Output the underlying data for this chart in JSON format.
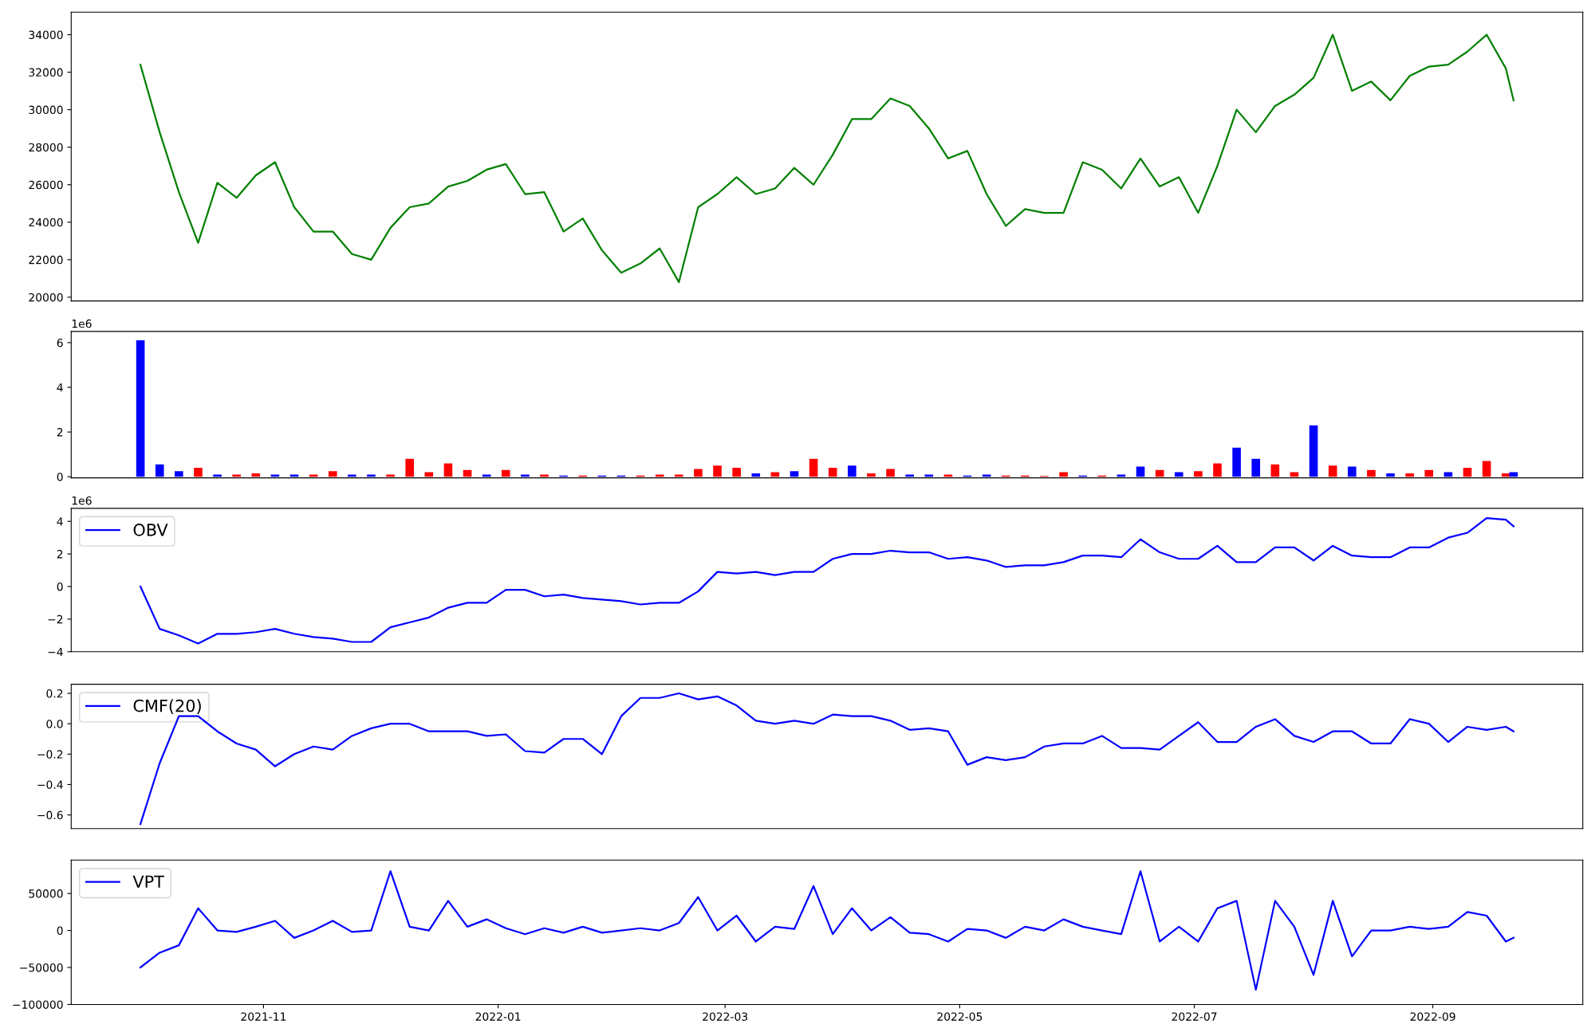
{
  "chart_data": [
    {
      "type": "line",
      "x": [
        "2021-09-30",
        "2021-10-05",
        "2021-10-10",
        "2021-10-15",
        "2021-10-20",
        "2021-10-25",
        "2021-10-30",
        "2021-11-04",
        "2021-11-09",
        "2021-11-14",
        "2021-11-19",
        "2021-11-24",
        "2021-11-29",
        "2021-12-04",
        "2021-12-09",
        "2021-12-14",
        "2021-12-19",
        "2021-12-24",
        "2021-12-29",
        "2022-01-03",
        "2022-01-08",
        "2022-01-13",
        "2022-01-18",
        "2022-01-23",
        "2022-01-28",
        "2022-02-02",
        "2022-02-07",
        "2022-02-12",
        "2022-02-17",
        "2022-02-22",
        "2022-02-27",
        "2022-03-04",
        "2022-03-09",
        "2022-03-14",
        "2022-03-19",
        "2022-03-24",
        "2022-03-29",
        "2022-04-03",
        "2022-04-08",
        "2022-04-13",
        "2022-04-18",
        "2022-04-23",
        "2022-04-28",
        "2022-05-03",
        "2022-05-08",
        "2022-05-13",
        "2022-05-18",
        "2022-05-23",
        "2022-05-28",
        "2022-06-02",
        "2022-06-07",
        "2022-06-12",
        "2022-06-17",
        "2022-06-22",
        "2022-06-27",
        "2022-07-02",
        "2022-07-07",
        "2022-07-12",
        "2022-07-17",
        "2022-07-22",
        "2022-07-27",
        "2022-08-01",
        "2022-08-06",
        "2022-08-11",
        "2022-08-16",
        "2022-08-21",
        "2022-08-26",
        "2022-08-31",
        "2022-09-05",
        "2022-09-10",
        "2022-09-15",
        "2022-09-20",
        "2022-09-22"
      ],
      "series": [
        {
          "color": "#008000",
          "values": [
            32400,
            28800,
            25600,
            22900,
            26100,
            25300,
            26500,
            27200,
            24800,
            23500,
            23500,
            22300,
            22000,
            23700,
            24800,
            25000,
            25900,
            26200,
            26800,
            27100,
            25500,
            25600,
            23500,
            24200,
            22500,
            21300,
            21800,
            22600,
            20800,
            24800,
            25500,
            26400,
            25500,
            25800,
            26900,
            26000,
            27600,
            29500,
            29500,
            30600,
            30200,
            29000,
            27400,
            27800,
            25500,
            23800,
            24700,
            24500,
            24500,
            27200,
            26800,
            25800,
            27400,
            25900,
            26400,
            24500,
            27000,
            30000,
            28800,
            30200,
            30800,
            31700,
            34000,
            31000,
            31500,
            30500,
            31800,
            32300,
            32400,
            33100,
            34000,
            32200,
            30500
          ]
        }
      ],
      "xlim": [
        "2021-09-12",
        "2022-10-10"
      ],
      "ylim": [
        19800,
        35200
      ],
      "yticks": [
        20000,
        22000,
        24000,
        26000,
        28000,
        30000,
        32000,
        34000
      ],
      "tick_labels": "y",
      "legend": false,
      "grid": false
    },
    {
      "type": "bar",
      "x": [
        "2021-09-30",
        "2021-10-05",
        "2021-10-10",
        "2021-10-15",
        "2021-10-20",
        "2021-10-25",
        "2021-10-30",
        "2021-11-04",
        "2021-11-09",
        "2021-11-14",
        "2021-11-19",
        "2021-11-24",
        "2021-11-29",
        "2021-12-04",
        "2021-12-09",
        "2021-12-14",
        "2021-12-19",
        "2021-12-24",
        "2021-12-29",
        "2022-01-03",
        "2022-01-08",
        "2022-01-13",
        "2022-01-18",
        "2022-01-23",
        "2022-01-28",
        "2022-02-02",
        "2022-02-07",
        "2022-02-12",
        "2022-02-17",
        "2022-02-22",
        "2022-02-27",
        "2022-03-04",
        "2022-03-09",
        "2022-03-14",
        "2022-03-19",
        "2022-03-24",
        "2022-03-29",
        "2022-04-03",
        "2022-04-08",
        "2022-04-13",
        "2022-04-18",
        "2022-04-23",
        "2022-04-28",
        "2022-05-03",
        "2022-05-08",
        "2022-05-13",
        "2022-05-18",
        "2022-05-23",
        "2022-05-28",
        "2022-06-02",
        "2022-06-07",
        "2022-06-12",
        "2022-06-17",
        "2022-06-22",
        "2022-06-27",
        "2022-07-02",
        "2022-07-07",
        "2022-07-12",
        "2022-07-17",
        "2022-07-22",
        "2022-07-27",
        "2022-08-01",
        "2022-08-06",
        "2022-08-11",
        "2022-08-16",
        "2022-08-21",
        "2022-08-26",
        "2022-08-31",
        "2022-09-05",
        "2022-09-10",
        "2022-09-15",
        "2022-09-20",
        "2022-09-22"
      ],
      "values": [
        6.1,
        0.55,
        0.25,
        0.4,
        0.1,
        0.1,
        0.15,
        0.1,
        0.1,
        0.1,
        0.25,
        0.1,
        0.1,
        0.1,
        0.8,
        0.2,
        0.6,
        0.3,
        0.1,
        0.3,
        0.1,
        0.1,
        0.05,
        0.05,
        0.05,
        0.05,
        0.05,
        0.1,
        0.1,
        0.35,
        0.5,
        0.4,
        0.15,
        0.2,
        0.25,
        0.8,
        0.4,
        0.5,
        0.15,
        0.35,
        0.1,
        0.1,
        0.1,
        0.05,
        0.1,
        0.05,
        0.05,
        0.03,
        0.2,
        0.05,
        0.05,
        0.1,
        0.45,
        0.3,
        0.2,
        0.25,
        0.6,
        1.3,
        0.8,
        0.55,
        0.2,
        2.3,
        0.5,
        0.45,
        0.3,
        0.15,
        0.15,
        0.3,
        0.2,
        0.4,
        0.7,
        0.15,
        0.2
      ],
      "colors": [
        "#0000ff",
        "#0000ff",
        "#0000ff",
        "#ff0000",
        "#0000ff",
        "#ff0000",
        "#ff0000",
        "#0000ff",
        "#0000ff",
        "#ff0000",
        "#ff0000",
        "#0000ff",
        "#0000ff",
        "#ff0000",
        "#ff0000",
        "#ff0000",
        "#ff0000",
        "#ff0000",
        "#0000ff",
        "#ff0000",
        "#0000ff",
        "#ff0000",
        "#0000ff",
        "#ff0000",
        "#0000ff",
        "#0000ff",
        "#ff0000",
        "#ff0000",
        "#ff0000",
        "#ff0000",
        "#ff0000",
        "#ff0000",
        "#0000ff",
        "#ff0000",
        "#0000ff",
        "#ff0000",
        "#ff0000",
        "#0000ff",
        "#ff0000",
        "#ff0000",
        "#0000ff",
        "#0000ff",
        "#ff0000",
        "#0000ff",
        "#0000ff",
        "#ff0000",
        "#ff0000",
        "#ff0000",
        "#ff0000",
        "#0000ff",
        "#ff0000",
        "#0000ff",
        "#0000ff",
        "#ff0000",
        "#0000ff",
        "#ff0000",
        "#ff0000",
        "#0000ff",
        "#0000ff",
        "#ff0000",
        "#ff0000",
        "#0000ff",
        "#ff0000",
        "#0000ff",
        "#ff0000",
        "#0000ff",
        "#ff0000",
        "#ff0000",
        "#0000ff",
        "#ff0000",
        "#ff0000",
        "#ff0000",
        "#0000ff"
      ],
      "xlim": [
        "2021-09-12",
        "2022-10-10"
      ],
      "ylim": [
        -0.05,
        6.5
      ],
      "yticks": [
        0,
        2,
        4,
        6
      ],
      "annotations": [
        "1e6"
      ],
      "tick_labels": "y",
      "legend": false,
      "grid": false
    },
    {
      "type": "line",
      "x": [
        "2021-09-30",
        "2021-10-05",
        "2021-10-10",
        "2021-10-15",
        "2021-10-20",
        "2021-10-25",
        "2021-10-30",
        "2021-11-04",
        "2021-11-09",
        "2021-11-14",
        "2021-11-19",
        "2021-11-24",
        "2021-11-29",
        "2021-12-04",
        "2021-12-09",
        "2021-12-14",
        "2021-12-19",
        "2021-12-24",
        "2021-12-29",
        "2022-01-03",
        "2022-01-08",
        "2022-01-13",
        "2022-01-18",
        "2022-01-23",
        "2022-01-28",
        "2022-02-02",
        "2022-02-07",
        "2022-02-12",
        "2022-02-17",
        "2022-02-22",
        "2022-02-27",
        "2022-03-04",
        "2022-03-09",
        "2022-03-14",
        "2022-03-19",
        "2022-03-24",
        "2022-03-29",
        "2022-04-03",
        "2022-04-08",
        "2022-04-13",
        "2022-04-18",
        "2022-04-23",
        "2022-04-28",
        "2022-05-03",
        "2022-05-08",
        "2022-05-13",
        "2022-05-18",
        "2022-05-23",
        "2022-05-28",
        "2022-06-02",
        "2022-06-07",
        "2022-06-12",
        "2022-06-17",
        "2022-06-22",
        "2022-06-27",
        "2022-07-02",
        "2022-07-07",
        "2022-07-12",
        "2022-07-17",
        "2022-07-22",
        "2022-07-27",
        "2022-08-01",
        "2022-08-06",
        "2022-08-11",
        "2022-08-16",
        "2022-08-21",
        "2022-08-26",
        "2022-08-31",
        "2022-09-05",
        "2022-09-10",
        "2022-09-15",
        "2022-09-20",
        "2022-09-22"
      ],
      "series": [
        {
          "name": "OBV",
          "color": "#0000ff",
          "values": [
            0,
            -2.6,
            -3.0,
            -3.5,
            -2.9,
            -2.9,
            -2.8,
            -2.6,
            -2.9,
            -3.1,
            -3.2,
            -3.4,
            -3.4,
            -2.5,
            -2.2,
            -1.9,
            -1.3,
            -1.0,
            -1.0,
            -0.2,
            -0.2,
            -0.6,
            -0.5,
            -0.7,
            -0.8,
            -0.9,
            -1.1,
            -1.0,
            -1.0,
            -0.3,
            0.9,
            0.8,
            0.9,
            0.7,
            0.9,
            0.9,
            1.7,
            2.0,
            2.0,
            2.2,
            2.1,
            2.1,
            1.7,
            1.8,
            1.6,
            1.2,
            1.3,
            1.3,
            1.5,
            1.9,
            1.9,
            1.8,
            2.9,
            2.1,
            1.7,
            1.7,
            2.5,
            1.5,
            1.5,
            2.4,
            2.4,
            1.6,
            2.5,
            1.9,
            1.8,
            1.8,
            2.4,
            2.4,
            3.0,
            3.3,
            4.2,
            4.1,
            3.7
          ]
        }
      ],
      "xlim": [
        "2021-09-12",
        "2022-10-10"
      ],
      "ylim": [
        -4.0,
        4.8
      ],
      "yticks": [
        {
          "value": -4,
          "label": "−4"
        },
        {
          "value": -2,
          "label": "−2"
        },
        0,
        2,
        4
      ],
      "annotations": [
        "1e6"
      ],
      "tick_labels": "y",
      "legend": "top left",
      "grid": false
    },
    {
      "type": "line",
      "x": [
        "2021-09-30",
        "2021-10-05",
        "2021-10-10",
        "2021-10-15",
        "2021-10-20",
        "2021-10-25",
        "2021-10-30",
        "2021-11-04",
        "2021-11-09",
        "2021-11-14",
        "2021-11-19",
        "2021-11-24",
        "2021-11-29",
        "2021-12-04",
        "2021-12-09",
        "2021-12-14",
        "2021-12-19",
        "2021-12-24",
        "2021-12-29",
        "2022-01-03",
        "2022-01-08",
        "2022-01-13",
        "2022-01-18",
        "2022-01-23",
        "2022-01-28",
        "2022-02-02",
        "2022-02-07",
        "2022-02-12",
        "2022-02-17",
        "2022-02-22",
        "2022-02-27",
        "2022-03-04",
        "2022-03-09",
        "2022-03-14",
        "2022-03-19",
        "2022-03-24",
        "2022-03-29",
        "2022-04-03",
        "2022-04-08",
        "2022-04-13",
        "2022-04-18",
        "2022-04-23",
        "2022-04-28",
        "2022-05-03",
        "2022-05-08",
        "2022-05-13",
        "2022-05-18",
        "2022-05-23",
        "2022-05-28",
        "2022-06-02",
        "2022-06-07",
        "2022-06-12",
        "2022-06-17",
        "2022-06-22",
        "2022-06-27",
        "2022-07-02",
        "2022-07-07",
        "2022-07-12",
        "2022-07-17",
        "2022-07-22",
        "2022-07-27",
        "2022-08-01",
        "2022-08-06",
        "2022-08-11",
        "2022-08-16",
        "2022-08-21",
        "2022-08-26",
        "2022-08-31",
        "2022-09-05",
        "2022-09-10",
        "2022-09-15",
        "2022-09-20",
        "2022-09-22"
      ],
      "series": [
        {
          "name": "CMF(20)",
          "color": "#0000ff",
          "values": [
            -0.66,
            -0.26,
            0.05,
            0.05,
            -0.05,
            -0.13,
            -0.17,
            -0.28,
            -0.2,
            -0.15,
            -0.17,
            -0.08,
            -0.03,
            0.0,
            0.0,
            -0.05,
            -0.05,
            -0.05,
            -0.08,
            -0.07,
            -0.18,
            -0.19,
            -0.1,
            -0.1,
            -0.2,
            0.05,
            0.17,
            0.17,
            0.2,
            0.16,
            0.18,
            0.12,
            0.02,
            0.0,
            0.02,
            0.0,
            0.06,
            0.05,
            0.05,
            0.02,
            -0.04,
            -0.03,
            -0.05,
            -0.27,
            -0.22,
            -0.24,
            -0.22,
            -0.15,
            -0.13,
            -0.13,
            -0.08,
            -0.16,
            -0.16,
            -0.17,
            -0.08,
            0.01,
            -0.12,
            -0.12,
            -0.02,
            0.03,
            -0.08,
            -0.12,
            -0.05,
            -0.05,
            -0.13,
            -0.13,
            0.03,
            0.0,
            -0.12,
            -0.02,
            -0.04,
            -0.02,
            -0.05
          ]
        }
      ],
      "xlim": [
        "2021-09-12",
        "2022-10-10"
      ],
      "ylim": [
        -0.69,
        0.26
      ],
      "yticks": [
        {
          "value": -0.6,
          "label": "−0.6"
        },
        {
          "value": -0.4,
          "label": "−0.4"
        },
        {
          "value": -0.2,
          "label": "−0.2"
        },
        {
          "value": 0.0,
          "label": "0.0"
        },
        {
          "value": 0.2,
          "label": "0.2"
        }
      ],
      "tick_labels": "y",
      "legend": "top left",
      "grid": false
    },
    {
      "type": "line",
      "x": [
        "2021-09-30",
        "2021-10-05",
        "2021-10-10",
        "2021-10-15",
        "2021-10-20",
        "2021-10-25",
        "2021-10-30",
        "2021-11-04",
        "2021-11-09",
        "2021-11-14",
        "2021-11-19",
        "2021-11-24",
        "2021-11-29",
        "2021-12-04",
        "2021-12-09",
        "2021-12-14",
        "2021-12-19",
        "2021-12-24",
        "2021-12-29",
        "2022-01-03",
        "2022-01-08",
        "2022-01-13",
        "2022-01-18",
        "2022-01-23",
        "2022-01-28",
        "2022-02-02",
        "2022-02-07",
        "2022-02-12",
        "2022-02-17",
        "2022-02-22",
        "2022-02-27",
        "2022-03-04",
        "2022-03-09",
        "2022-03-14",
        "2022-03-19",
        "2022-03-24",
        "2022-03-29",
        "2022-04-03",
        "2022-04-08",
        "2022-04-13",
        "2022-04-18",
        "2022-04-23",
        "2022-04-28",
        "2022-05-03",
        "2022-05-08",
        "2022-05-13",
        "2022-05-18",
        "2022-05-23",
        "2022-05-28",
        "2022-06-02",
        "2022-06-07",
        "2022-06-12",
        "2022-06-17",
        "2022-06-22",
        "2022-06-27",
        "2022-07-02",
        "2022-07-07",
        "2022-07-12",
        "2022-07-17",
        "2022-07-22",
        "2022-07-27",
        "2022-08-01",
        "2022-08-06",
        "2022-08-11",
        "2022-08-16",
        "2022-08-21",
        "2022-08-26",
        "2022-08-31",
        "2022-09-05",
        "2022-09-10",
        "2022-09-15",
        "2022-09-20",
        "2022-09-22"
      ],
      "series": [
        {
          "name": "VPT",
          "color": "#0000ff",
          "values": [
            -50000,
            -30000,
            -20000,
            30000,
            0,
            -2000,
            5000,
            13000,
            -10000,
            0,
            13000,
            -2000,
            0,
            80000,
            5000,
            0,
            40000,
            5000,
            15000,
            3000,
            -5000,
            3000,
            -3000,
            5000,
            -3000,
            0,
            3000,
            0,
            10000,
            45000,
            0,
            20000,
            -15000,
            5000,
            2000,
            60000,
            -5000,
            30000,
            0,
            18000,
            -3000,
            -5000,
            -15000,
            2000,
            0,
            -10000,
            5000,
            0,
            15000,
            5000,
            0,
            -5000,
            80000,
            -15000,
            5000,
            -15000,
            30000,
            40000,
            -80000,
            40000,
            5000,
            -60000,
            40000,
            -35000,
            0,
            0,
            5000,
            2000,
            5000,
            25000,
            20000,
            -15000,
            -10000
          ]
        }
      ],
      "xlim": [
        "2021-09-12",
        "2022-10-10"
      ],
      "ylim": [
        -100000,
        95000
      ],
      "yticks": [
        {
          "value": -100000,
          "label": "−100000"
        },
        {
          "value": -50000,
          "label": "−50000"
        },
        {
          "value": 0,
          "label": "0"
        },
        {
          "value": 50000,
          "label": "50000"
        }
      ],
      "xticks": [
        {
          "value": "2021-11-01",
          "label": "2021-11"
        },
        {
          "value": "2022-01-01",
          "label": "2022-01"
        },
        {
          "value": "2022-03-01",
          "label": "2022-03"
        },
        {
          "value": "2022-05-01",
          "label": "2022-05"
        },
        {
          "value": "2022-07-01",
          "label": "2022-07"
        },
        {
          "value": "2022-09-01",
          "label": "2022-09"
        }
      ],
      "legend": "top left",
      "grid": false
    }
  ]
}
